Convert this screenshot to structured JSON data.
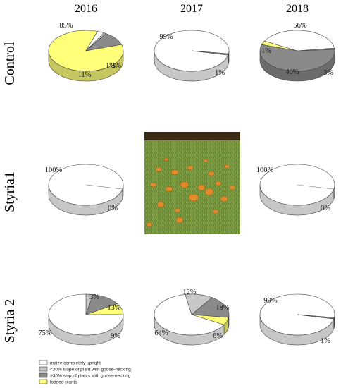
{
  "colors": {
    "upright": "#ffffff",
    "slope_lt30": "#c8c8c8",
    "slope_gt30": "#8a8a8a",
    "lodged": "#ffff7a",
    "edge": "#444444",
    "photo_bg": "#5a7a30"
  },
  "photo": {
    "icon": "pumpkin-field-photo"
  },
  "chart_data": {
    "type": "pie",
    "columns": [
      "2016",
      "2017",
      "2018"
    ],
    "rows": [
      "Control",
      "Styria1",
      "Styria 2"
    ],
    "legend": [
      {
        "key": "upright",
        "label": "maize completely upright"
      },
      {
        "key": "slope_lt30",
        "label": "<30% slope of plant with goose-necking"
      },
      {
        "key": "slope_gt30",
        "label": ">30% slop of plants with goose-necking"
      },
      {
        "key": "lodged",
        "label": "lodged plants"
      }
    ],
    "pies": [
      {
        "row": "Control",
        "col": "2016",
        "slices": [
          {
            "key": "lodged",
            "value": 85,
            "label": "85%"
          },
          {
            "key": "upright",
            "value": 3,
            "label": "3%"
          },
          {
            "key": "slope_lt30",
            "value": 1,
            "label": "1%"
          },
          {
            "key": "slope_gt30",
            "value": 11,
            "label": "11%"
          }
        ]
      },
      {
        "row": "Control",
        "col": "2017",
        "slices": [
          {
            "key": "upright",
            "value": 99,
            "label": "99%"
          },
          {
            "key": "slope_gt30",
            "value": 1,
            "label": "1%"
          }
        ]
      },
      {
        "row": "Control",
        "col": "2018",
        "slices": [
          {
            "key": "slope_gt30",
            "value": 56,
            "label": "56%"
          },
          {
            "key": "lodged",
            "value": 3,
            "label": "3%"
          },
          {
            "key": "upright",
            "value": 40,
            "label": "40%"
          },
          {
            "key": "slope_lt30",
            "value": 1,
            "label": "1%"
          }
        ]
      },
      {
        "row": "Styria1",
        "col": "2016",
        "slices": [
          {
            "key": "upright",
            "value": 100,
            "label": "100%"
          },
          {
            "key": "slope_gt30",
            "value": 0,
            "label": "0%"
          }
        ]
      },
      {
        "row": "Styria1",
        "col": "2018",
        "slices": [
          {
            "key": "upright",
            "value": 100,
            "label": "100%"
          },
          {
            "key": "slope_gt30",
            "value": 0,
            "label": "0%"
          }
        ]
      },
      {
        "row": "Styria 2",
        "col": "2016",
        "slices": [
          {
            "key": "slope_lt30",
            "value": 3,
            "label": "3%"
          },
          {
            "key": "slope_gt30",
            "value": 13,
            "label": "13%"
          },
          {
            "key": "lodged",
            "value": 9,
            "label": "9%"
          },
          {
            "key": "upright",
            "value": 75,
            "label": "75%"
          }
        ]
      },
      {
        "row": "Styria 2",
        "col": "2017",
        "slices": [
          {
            "key": "slope_lt30",
            "value": 12,
            "label": "12%"
          },
          {
            "key": "slope_gt30",
            "value": 18,
            "label": "18%"
          },
          {
            "key": "lodged",
            "value": 6,
            "label": "6%"
          },
          {
            "key": "upright",
            "value": 64,
            "label": "64%"
          }
        ]
      },
      {
        "row": "Styria 2",
        "col": "2018",
        "slices": [
          {
            "key": "upright",
            "value": 99,
            "label": "99%"
          },
          {
            "key": "slope_gt30",
            "value": 1,
            "label": "1%"
          }
        ]
      }
    ]
  }
}
